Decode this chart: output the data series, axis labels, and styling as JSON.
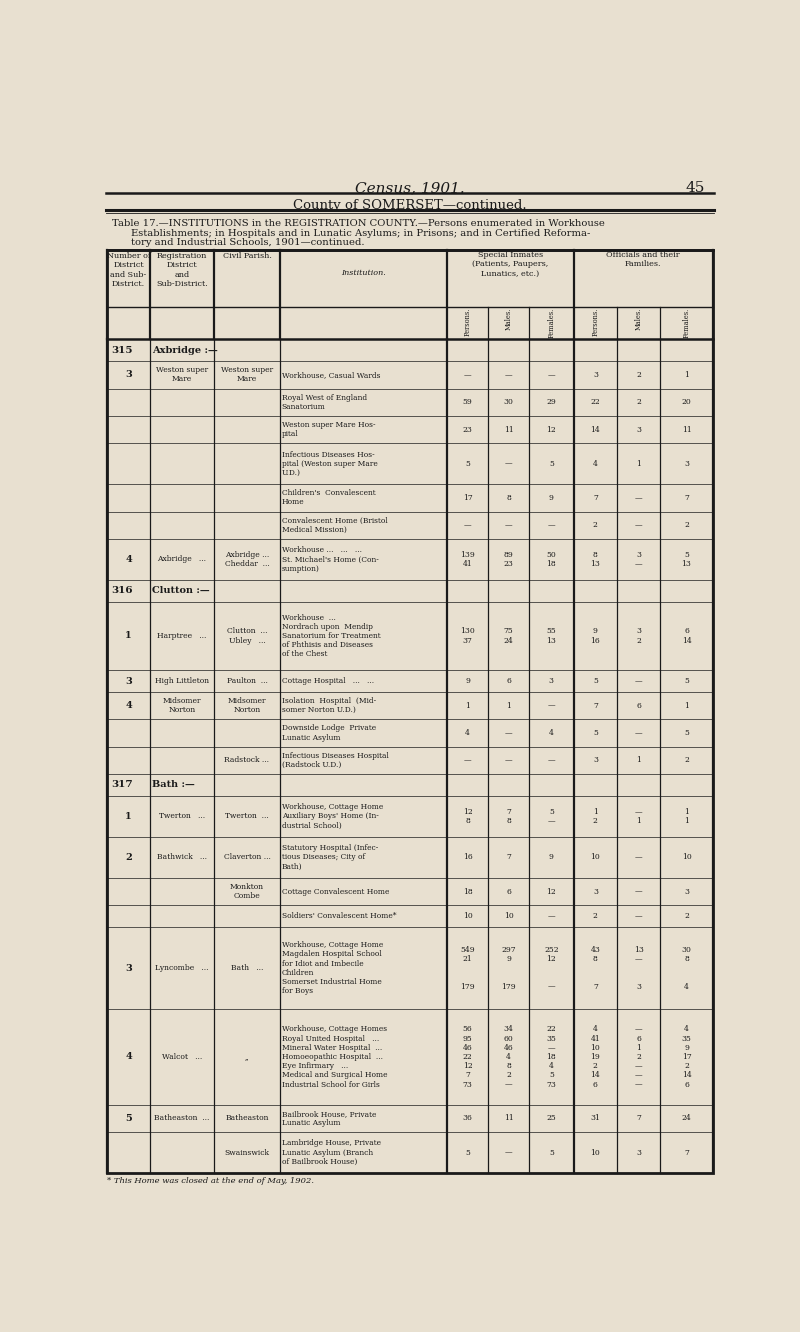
{
  "page_title": "Census, 1901.",
  "page_number": "45",
  "county_header": "County of SOMERSET—continued.",
  "table_title_line1": "Table 17.—INSTITUTIONS in the REGISTRATION COUNTY.—Persons enumerated in Workhouse",
  "table_title_line2": "Establishments; in Hospitals and in Lunatic Asylums; in Prisons; and in Certified Reforma-",
  "table_title_line3": "tory and Industrial Schools, 1901—continued.",
  "special_inmates_header": "Special Inmates\n(Patients, Paupers,\nLunatics, etc.)",
  "officials_header": "Officials and their\nFamilies.",
  "bg_color": "#e8e0d0",
  "rows": [
    {
      "num": "315",
      "district": "Axbridge :—",
      "parish": "",
      "institution": "",
      "p": "",
      "m": "",
      "f": "",
      "op": "",
      "om": "",
      "of": "",
      "header": true
    },
    {
      "num": "3",
      "district": "Weston super\nMare",
      "parish": "Weston super\nMare",
      "institution": "Workhouse, Casual Wards",
      "p": "—",
      "m": "—",
      "f": "—",
      "op": "3",
      "om": "2",
      "of": "1"
    },
    {
      "num": "",
      "district": "",
      "parish": "",
      "institution": "Royal West of England\nSanatorium",
      "p": "59",
      "m": "30",
      "f": "29",
      "op": "22",
      "om": "2",
      "of": "20"
    },
    {
      "num": "",
      "district": "",
      "parish": "",
      "institution": "Weston super Mare Hos-\npital",
      "p": "23",
      "m": "11",
      "f": "12",
      "op": "14",
      "om": "3",
      "of": "11"
    },
    {
      "num": "",
      "district": "",
      "parish": "",
      "institution": "Infectious Diseases Hos-\npital (Weston super Mare\nU.D.)",
      "p": "5",
      "m": "—",
      "f": "5",
      "op": "4",
      "om": "1",
      "of": "3"
    },
    {
      "num": "",
      "district": "",
      "parish": "",
      "institution": "Children's  Convalescent\nHome",
      "p": "17",
      "m": "8",
      "f": "9",
      "op": "7",
      "om": "—",
      "of": "7"
    },
    {
      "num": "",
      "district": "",
      "parish": "",
      "institution": "Convalescent Home (Bristol\nMedical Mission)",
      "p": "—",
      "m": "—",
      "f": "—",
      "op": "2",
      "om": "—",
      "of": "2"
    },
    {
      "num": "4",
      "district": "Axbridge   ...",
      "parish": "Axbridge ...\nCheddar  ...",
      "institution": "Workhouse ...   ...   ...\nSt. Michael's Home (Con-\nsumption)",
      "p": "139\n41",
      "m": "89\n23",
      "f": "50\n18",
      "op": "8\n13",
      "om": "3\n—",
      "of": "5\n13"
    },
    {
      "num": "316",
      "district": "Clutton :—",
      "parish": "",
      "institution": "",
      "p": "",
      "m": "",
      "f": "",
      "op": "",
      "om": "",
      "of": "",
      "header": true
    },
    {
      "num": "1",
      "district": "Harptree   ...",
      "parish": "Clutton  ...\nUbley   ...",
      "institution": "Workhouse  ...\nNordrach upon  Mendip\nSanatorium for Treatment\nof Phthisis and Diseases\nof the Chest",
      "p": "130\n37",
      "m": "75\n24",
      "f": "55\n13",
      "op": "9\n16",
      "om": "3\n2",
      "of": "6\n14"
    },
    {
      "num": "3",
      "district": "High Littleton",
      "parish": "Paulton  ...",
      "institution": "Cottage Hospital   ...   ...",
      "p": "9",
      "m": "6",
      "f": "3",
      "op": "5",
      "om": "—",
      "of": "5"
    },
    {
      "num": "4",
      "district": "Midsomer\nNorton",
      "parish": "Midsomer\nNorton",
      "institution": "Isolation  Hospital  (Mid-\nsomer Norton U.D.)",
      "p": "1",
      "m": "1",
      "f": "—",
      "op": "7",
      "om": "6",
      "of": "1"
    },
    {
      "num": "",
      "district": "",
      "parish": "",
      "institution": "Downside Lodge  Private\nLunatic Asylum",
      "p": "4",
      "m": "—",
      "f": "4",
      "op": "5",
      "om": "—",
      "of": "5"
    },
    {
      "num": "",
      "district": "",
      "parish": "Radstock ...",
      "institution": "Infectious Diseases Hospital\n(Radstock U.D.)",
      "p": "—",
      "m": "—",
      "f": "—",
      "op": "3",
      "om": "1",
      "of": "2"
    },
    {
      "num": "317",
      "district": "Bath :—",
      "parish": "",
      "institution": "",
      "p": "",
      "m": "",
      "f": "",
      "op": "",
      "om": "",
      "of": "",
      "header": true
    },
    {
      "num": "1",
      "district": "Twerton   ...",
      "parish": "Twerton  ...",
      "institution": "Workhouse, Cottage Home\nAuxiliary Boys' Home (In-\ndustrial School)",
      "p": "12\n8",
      "m": "7\n8",
      "f": "5\n—",
      "op": "1\n2",
      "om": "—\n1",
      "of": "1\n1"
    },
    {
      "num": "2",
      "district": "Bathwick   ...",
      "parish": "Claverton ...",
      "institution": "Statutory Hospital (Infec-\ntious Diseases; City of\nBath)",
      "p": "16",
      "m": "7",
      "f": "9",
      "op": "10",
      "om": "—",
      "of": "10"
    },
    {
      "num": "",
      "district": "",
      "parish": "Monkton\nCombe",
      "institution": "Cottage Convalescent Home",
      "p": "18",
      "m": "6",
      "f": "12",
      "op": "3",
      "om": "—",
      "of": "3"
    },
    {
      "num": "",
      "district": "",
      "parish": "",
      "institution": "Soldiers' Convalescent Home*",
      "p": "10",
      "m": "10",
      "f": "—",
      "op": "2",
      "om": "—",
      "of": "2"
    },
    {
      "num": "3",
      "district": "Lyncombe   ...",
      "parish": "Bath   ...",
      "institution": "Workhouse, Cottage Home\nMagdalen Hospital School\nfor Idiot and Imbecile\nChildren\nSomerset Industrial Home\nfor Boys",
      "p": "549\n21\n\n\n179",
      "m": "297\n9\n\n\n179",
      "f": "252\n12\n\n\n—",
      "op": "43\n8\n\n\n7",
      "om": "13\n—\n\n\n3",
      "of": "30\n8\n\n\n4"
    },
    {
      "num": "4",
      "district": "Walcot   ...",
      "parish": ",,",
      "institution": "Workhouse, Cottage Homes\nRoyal United Hospital   ...\nMineral Water Hospital  ...\nHomoeopathic Hospital  ...\nEye Infirmary   ...\nMedical and Surgical Home\nIndustrial School for Girls",
      "p": "56\n95\n46\n22\n12\n7\n73",
      "m": "34\n60\n46\n4\n8\n2\n—",
      "f": "22\n35\n—\n18\n4\n5\n73",
      "op": "4\n41\n10\n19\n2\n14\n6",
      "om": "—\n6\n1\n2\n—\n—\n—",
      "of": "4\n35\n9\n17\n2\n14\n6"
    },
    {
      "num": "5",
      "district": "Batheaston  ...",
      "parish": "Batheaston",
      "institution": "Bailbrook House, Private\nLunatic Asylum",
      "p": "36",
      "m": "11",
      "f": "25",
      "op": "31",
      "om": "7",
      "of": "24"
    },
    {
      "num": "",
      "district": "",
      "parish": "Swainswick",
      "institution": "Lambridge House, Private\nLunatic Asylum (Branch\nof Bailbrook House)",
      "p": "5",
      "m": "—",
      "f": "5",
      "op": "10",
      "om": "3",
      "of": "7"
    }
  ],
  "footnote": "* This Home was closed at the end of May, 1902."
}
